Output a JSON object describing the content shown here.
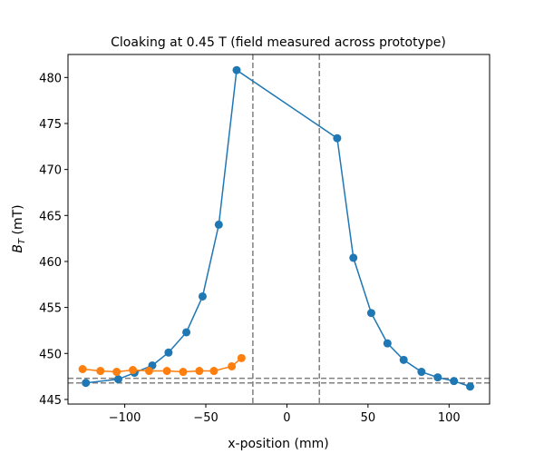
{
  "chart_data": {
    "type": "line",
    "title": "Cloaking at 0.45 T (field measured across prototype)",
    "xlabel": "x-position (mm)",
    "ylabel_main": "B",
    "ylabel_sub": "T",
    "ylabel_unit": " (mT)",
    "xlim": [
      -135,
      125
    ],
    "ylim": [
      444.5,
      482.5
    ],
    "xticks": [
      -100,
      -50,
      0,
      50,
      100
    ],
    "yticks": [
      445,
      450,
      455,
      460,
      465,
      470,
      475,
      480
    ],
    "grid": false,
    "series": [
      {
        "color": "#1f77b4",
        "x": [
          -124,
          -104,
          -94,
          -83,
          -73,
          -62,
          -52,
          -42,
          -31,
          31,
          41,
          52,
          62,
          72,
          83,
          93,
          103,
          113
        ],
        "y": [
          446.8,
          447.2,
          447.9,
          448.7,
          450.1,
          452.3,
          456.2,
          464.0,
          480.8,
          473.4,
          460.4,
          454.4,
          451.1,
          449.3,
          448.0,
          447.4,
          447.0,
          446.4
        ]
      },
      {
        "color": "#ff7f0e",
        "x": [
          -126,
          -115,
          -105,
          -95,
          -85,
          -74,
          -64,
          -54,
          -45,
          -34,
          -28
        ],
        "y": [
          448.3,
          448.1,
          448.0,
          448.2,
          448.1,
          448.1,
          448.0,
          448.1,
          448.1,
          448.6,
          449.5
        ]
      }
    ],
    "reference_lines": {
      "color": "#808080",
      "vertical_x": [
        -21,
        20
      ],
      "horizontal_y": [
        447.3,
        446.8
      ]
    }
  }
}
